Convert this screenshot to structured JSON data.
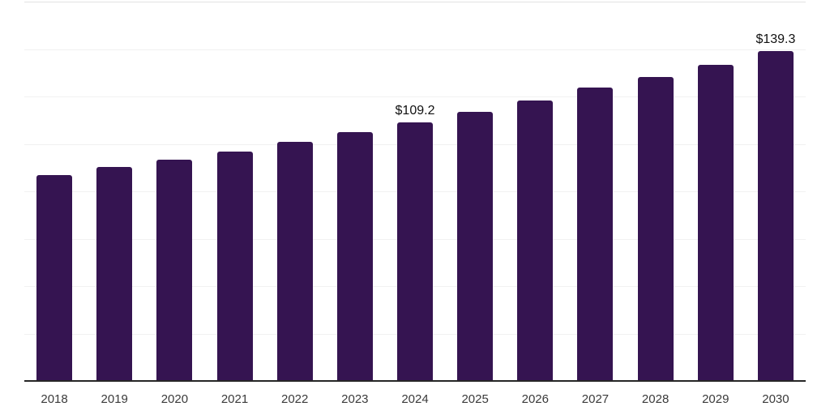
{
  "chart_data": {
    "type": "bar",
    "categories": [
      "2018",
      "2019",
      "2020",
      "2021",
      "2022",
      "2023",
      "2024",
      "2025",
      "2026",
      "2027",
      "2028",
      "2029",
      "2030"
    ],
    "values": [
      86.9,
      90.2,
      93.2,
      96.9,
      100.7,
      104.9,
      109.2,
      113.5,
      118.2,
      123.6,
      128.3,
      133.4,
      139.3
    ],
    "annotations": [
      {
        "category": "2024",
        "text": "$109.2"
      },
      {
        "category": "2030",
        "text": "$139.3"
      }
    ],
    "title": "",
    "xlabel": "",
    "ylabel": "",
    "ylim": [
      0,
      160
    ],
    "grid_step": 20,
    "grid": true,
    "legend": false
  },
  "colors": {
    "background": "#ffffff",
    "bar": "#351451",
    "gridline": "#f1f1f1",
    "top_gridline": "#e2e2e2",
    "axis_line": "#262626",
    "tick_label": "#3a3a3a",
    "value_label": "#111111"
  }
}
